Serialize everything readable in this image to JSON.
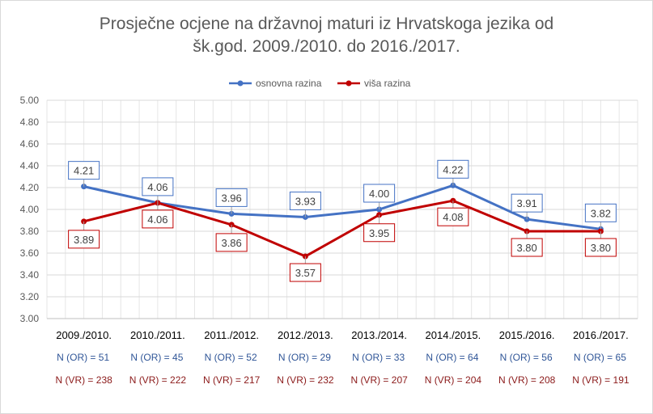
{
  "chart_data": {
    "type": "line",
    "title_lines": [
      "Prosječne ocjene na državnoj maturi iz Hrvatskoga jezika od",
      "šk.god. 2009./2010. do 2016./2017."
    ],
    "categories": [
      "2009./2010.",
      "2010./2011.",
      "2011./2012.",
      "2012./2013.",
      "2013./2014.",
      "2014./2015.",
      "2015./2016.",
      "2016./2017."
    ],
    "series": [
      {
        "name": "osnovna razina",
        "color": "#4472c4",
        "values": [
          4.21,
          4.06,
          3.96,
          3.93,
          4.0,
          4.22,
          3.91,
          3.82
        ],
        "labels": [
          "4.21",
          "4.06",
          "3.96",
          "3.93",
          "4.00",
          "4.22",
          "3.91",
          "3.82"
        ]
      },
      {
        "name": "viša razina",
        "color": "#c00000",
        "values": [
          3.89,
          4.06,
          3.86,
          3.57,
          3.95,
          4.08,
          3.8,
          3.8
        ],
        "labels": [
          "3.89",
          "4.06",
          "3.86",
          "3.57",
          "3.95",
          "4.08",
          "3.80",
          "3.80"
        ]
      }
    ],
    "ylim": [
      3.0,
      5.0
    ],
    "yticks": [
      "3.00",
      "3.20",
      "3.40",
      "3.60",
      "3.80",
      "4.00",
      "4.20",
      "4.40",
      "4.60",
      "4.80",
      "5.00"
    ],
    "grid": true,
    "legend_position": "top",
    "counts_or": [
      "N (OR) = 51",
      "N (OR) = 45",
      "N (OR) = 52",
      "N (OR) = 29",
      "N (OR) = 33",
      "N (OR) = 64",
      "N (OR) = 56",
      "N (OR) = 65"
    ],
    "counts_vr": [
      "N (VR) = 238",
      "N (VR) = 222",
      "N (VR) = 217",
      "N (VR) = 232",
      "N (VR) = 207",
      "N (VR) = 204",
      "N (VR) = 208",
      "N (VR) = 191"
    ]
  }
}
